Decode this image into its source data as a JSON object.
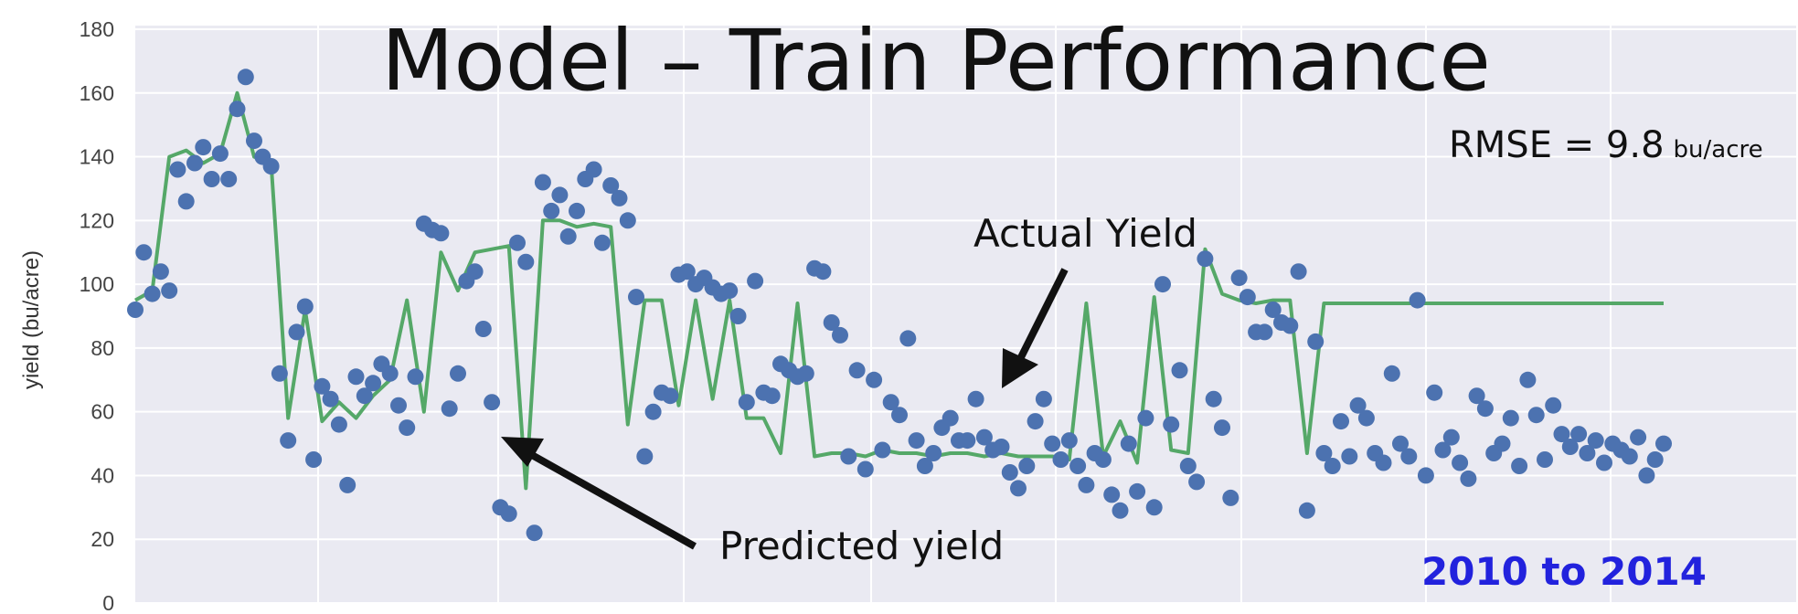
{
  "chart_data": {
    "type": "scatter",
    "title": "Model – Train Performance",
    "ylabel": "yield (bu/acre)",
    "xlabel": "",
    "ylim": [
      0,
      180
    ],
    "yticks": [
      "0",
      "20",
      "40",
      "60",
      "80",
      "100",
      "120",
      "140",
      "160",
      "180"
    ],
    "xlim": [
      0,
      180
    ],
    "grid": true,
    "annotations": {
      "rmse_prefix": "RMSE = ",
      "rmse_value": "9.8",
      "rmse_unit": "bu/acre",
      "actual_label": "Actual Yield",
      "predicted_label": "Predicted yield",
      "period": "2010 to 2014"
    },
    "colors": {
      "actual": "#4c72b0",
      "predicted": "#55a868",
      "background": "#eaeaf2",
      "grid": "#ffffff",
      "period": "#2222dd"
    },
    "series": [
      {
        "kind": "points",
        "x": [
          0,
          1,
          2,
          3,
          4,
          5,
          6,
          7,
          8,
          9,
          10,
          11,
          12,
          13,
          14,
          15,
          16,
          17,
          18,
          19,
          20,
          21,
          22,
          23,
          24,
          25,
          26,
          27,
          28,
          29,
          30,
          31,
          32,
          33,
          34,
          35,
          36,
          37,
          38,
          39,
          40,
          41,
          42,
          43,
          44,
          45,
          46,
          47,
          48,
          49,
          50,
          51,
          52,
          53,
          54,
          55,
          56,
          57,
          58,
          59,
          60,
          61,
          62,
          63,
          64,
          65,
          66,
          67,
          68,
          69,
          70,
          71,
          72,
          73,
          74,
          75,
          76,
          77,
          78,
          79,
          80,
          81,
          82,
          83,
          84,
          85,
          86,
          87,
          88,
          89,
          90,
          91,
          92,
          93,
          94,
          95,
          96,
          97,
          98,
          99,
          100,
          101,
          102,
          103,
          104,
          105,
          106,
          107,
          108,
          109,
          110,
          111,
          112,
          113,
          114,
          115,
          116,
          117,
          118,
          119,
          120,
          121,
          122,
          123,
          124,
          125,
          126,
          127,
          128,
          129,
          130,
          131,
          132,
          133,
          134,
          135,
          136,
          137,
          138,
          139,
          140,
          141,
          142,
          143,
          144,
          145,
          146,
          147,
          148,
          149,
          150,
          151,
          152,
          153,
          154,
          155,
          156,
          157,
          158,
          159,
          160,
          161,
          162,
          163,
          164,
          165,
          166,
          167,
          168,
          169,
          170,
          171,
          172,
          173,
          174,
          175,
          176,
          177,
          178,
          179,
          180
        ],
        "y": [
          92,
          110,
          97,
          104,
          98,
          136,
          126,
          138,
          143,
          133,
          141,
          133,
          155,
          165,
          145,
          140,
          137,
          72,
          51,
          85,
          93,
          45,
          68,
          64,
          56,
          37,
          71,
          65,
          69,
          75,
          72,
          62,
          55,
          71,
          119,
          117,
          116,
          61,
          72,
          101,
          104,
          86,
          63,
          30,
          28,
          113,
          107,
          22,
          132,
          123,
          128,
          115,
          123,
          133,
          136,
          113,
          131,
          127,
          120,
          96,
          46,
          60,
          66,
          65,
          103,
          104,
          100,
          102,
          99,
          97,
          98,
          90,
          63,
          101,
          66,
          65,
          75,
          73,
          71,
          72,
          105,
          104,
          88,
          84,
          46,
          73,
          42,
          70,
          48,
          63,
          59,
          83,
          51,
          43,
          47,
          55,
          58,
          51,
          51,
          64,
          52,
          48,
          49,
          41,
          36,
          43,
          57,
          64,
          50,
          45,
          51,
          43,
          37,
          47,
          45,
          34,
          29,
          50,
          35,
          58,
          30,
          100,
          56,
          73,
          43,
          38,
          108,
          64,
          55,
          33,
          102,
          96,
          85,
          85,
          92,
          88,
          87,
          104,
          29,
          82,
          47,
          43,
          57,
          46,
          62,
          58,
          47,
          44,
          72,
          50,
          46,
          95,
          40,
          66,
          48,
          52,
          44,
          39,
          65,
          61,
          47,
          50,
          58,
          43,
          70,
          59,
          45,
          62,
          53,
          49,
          53,
          47,
          51,
          44,
          50,
          48,
          46,
          52,
          40,
          45,
          50
        ]
      },
      {
        "kind": "line",
        "x": [
          0,
          2,
          4,
          6,
          8,
          10,
          12,
          14,
          16,
          18,
          20,
          22,
          24,
          26,
          28,
          30,
          32,
          34,
          36,
          38,
          40,
          42,
          44,
          46,
          48,
          50,
          52,
          54,
          56,
          58,
          60,
          62,
          64,
          66,
          68,
          70,
          72,
          74,
          76,
          78,
          80,
          82,
          84,
          86,
          88,
          90,
          92,
          94,
          96,
          98,
          100,
          102,
          104,
          106,
          108,
          110,
          112,
          114,
          116,
          118,
          120,
          122,
          124,
          126,
          128,
          130,
          132,
          134,
          136,
          138,
          140,
          142,
          144,
          146,
          148,
          150,
          152,
          154,
          156,
          158,
          160,
          162,
          164,
          166,
          168,
          170,
          172,
          174,
          176,
          178,
          180
        ],
        "y": [
          95,
          98,
          140,
          142,
          138,
          141,
          160,
          140,
          138,
          58,
          92,
          57,
          63,
          58,
          65,
          70,
          95,
          60,
          110,
          98,
          110,
          111,
          112,
          36,
          120,
          120,
          118,
          119,
          118,
          56,
          95,
          95,
          62,
          95,
          64,
          95,
          58,
          58,
          47,
          94,
          46,
          47,
          47,
          46,
          48,
          47,
          47,
          46,
          47,
          47,
          46,
          47,
          46,
          46,
          46,
          45,
          94,
          46,
          57,
          44,
          96,
          48,
          47,
          111,
          97,
          95,
          94,
          95,
          95,
          47,
          94,
          94,
          94,
          94,
          94,
          94,
          94,
          94,
          94,
          94,
          94,
          94,
          94,
          94,
          94,
          94,
          94,
          94,
          94,
          94,
          94
        ]
      }
    ]
  }
}
